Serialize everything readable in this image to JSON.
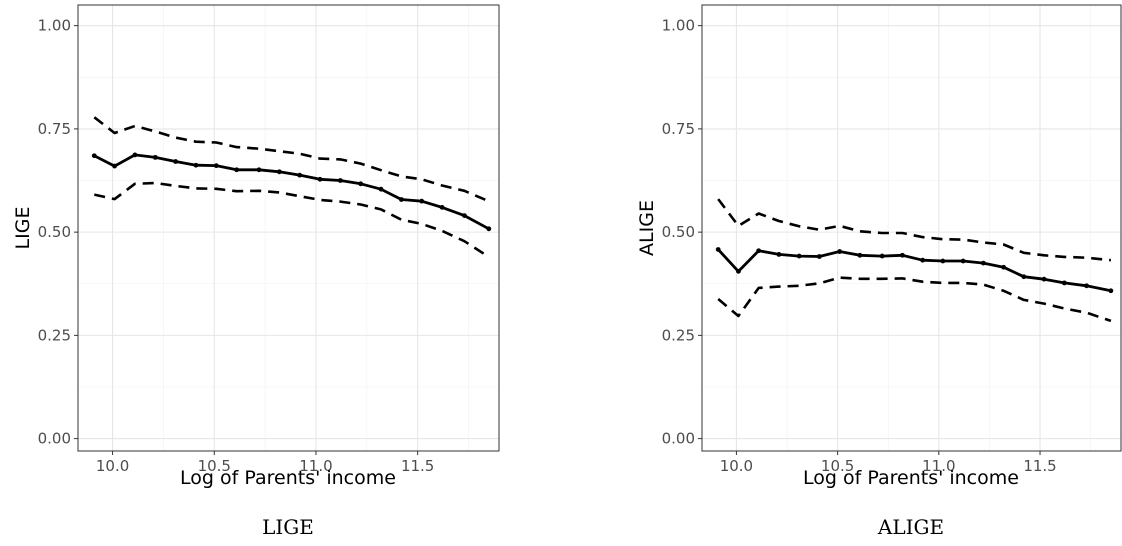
{
  "chart_data": [
    {
      "type": "line",
      "caption": "LIGE",
      "xlabel": "Log of Parents' income",
      "ylabel": "LIGE",
      "xlim": [
        9.83,
        11.9
      ],
      "ylim": [
        -0.03,
        1.05
      ],
      "xticks": [
        10.0,
        10.5,
        11.0,
        11.5
      ],
      "xtick_labels": [
        "10.0",
        "10.5",
        "11.0",
        "11.5"
      ],
      "yticks": [
        0.0,
        0.25,
        0.5,
        0.75,
        1.0
      ],
      "ytick_labels": [
        "0.00",
        "0.25",
        "0.50",
        "0.75",
        "1.00"
      ],
      "grid": true,
      "x": [
        9.91,
        10.01,
        10.11,
        10.21,
        10.31,
        10.41,
        10.51,
        10.61,
        10.72,
        10.82,
        10.92,
        11.02,
        11.12,
        11.22,
        11.32,
        11.42,
        11.52,
        11.62,
        11.73,
        11.85
      ],
      "series": [
        {
          "style": "solid-with-points",
          "values": [
            0.685,
            0.66,
            0.687,
            0.681,
            0.671,
            0.662,
            0.661,
            0.651,
            0.651,
            0.646,
            0.638,
            0.628,
            0.625,
            0.617,
            0.604,
            0.579,
            0.575,
            0.56,
            0.54,
            0.508
          ]
        },
        {
          "style": "dashed",
          "values": [
            0.778,
            0.74,
            0.757,
            0.744,
            0.729,
            0.719,
            0.717,
            0.706,
            0.702,
            0.696,
            0.69,
            0.678,
            0.676,
            0.666,
            0.65,
            0.635,
            0.628,
            0.613,
            0.6,
            0.575
          ]
        },
        {
          "style": "dashed",
          "values": [
            0.591,
            0.58,
            0.617,
            0.619,
            0.612,
            0.606,
            0.605,
            0.599,
            0.6,
            0.596,
            0.587,
            0.578,
            0.574,
            0.567,
            0.555,
            0.53,
            0.52,
            0.503,
            0.478,
            0.44
          ]
        }
      ]
    },
    {
      "type": "line",
      "caption": "ALIGE",
      "xlabel": "Log of Parents' income",
      "ylabel": "ALIGE",
      "xlim": [
        9.83,
        11.9
      ],
      "ylim": [
        -0.03,
        1.05
      ],
      "xticks": [
        10.0,
        10.5,
        11.0,
        11.5
      ],
      "xtick_labels": [
        "10.0",
        "10.5",
        "11.0",
        "11.5"
      ],
      "yticks": [
        0.0,
        0.25,
        0.5,
        0.75,
        1.0
      ],
      "ytick_labels": [
        "0.00",
        "0.25",
        "0.50",
        "0.75",
        "1.00"
      ],
      "grid": true,
      "x": [
        9.91,
        10.01,
        10.11,
        10.21,
        10.31,
        10.41,
        10.51,
        10.61,
        10.72,
        10.82,
        10.92,
        11.02,
        11.12,
        11.22,
        11.32,
        11.42,
        11.52,
        11.62,
        11.73,
        11.85
      ],
      "series": [
        {
          "style": "solid-with-points",
          "values": [
            0.458,
            0.405,
            0.455,
            0.446,
            0.442,
            0.441,
            0.453,
            0.444,
            0.442,
            0.444,
            0.432,
            0.43,
            0.43,
            0.425,
            0.415,
            0.392,
            0.386,
            0.377,
            0.37,
            0.358
          ]
        },
        {
          "style": "dashed",
          "values": [
            0.58,
            0.515,
            0.545,
            0.527,
            0.514,
            0.506,
            0.515,
            0.502,
            0.498,
            0.498,
            0.488,
            0.483,
            0.482,
            0.475,
            0.47,
            0.45,
            0.444,
            0.44,
            0.438,
            0.432
          ]
        },
        {
          "style": "dashed",
          "values": [
            0.338,
            0.297,
            0.365,
            0.368,
            0.37,
            0.376,
            0.39,
            0.387,
            0.387,
            0.388,
            0.38,
            0.377,
            0.377,
            0.373,
            0.358,
            0.336,
            0.327,
            0.315,
            0.305,
            0.285
          ]
        }
      ]
    }
  ]
}
